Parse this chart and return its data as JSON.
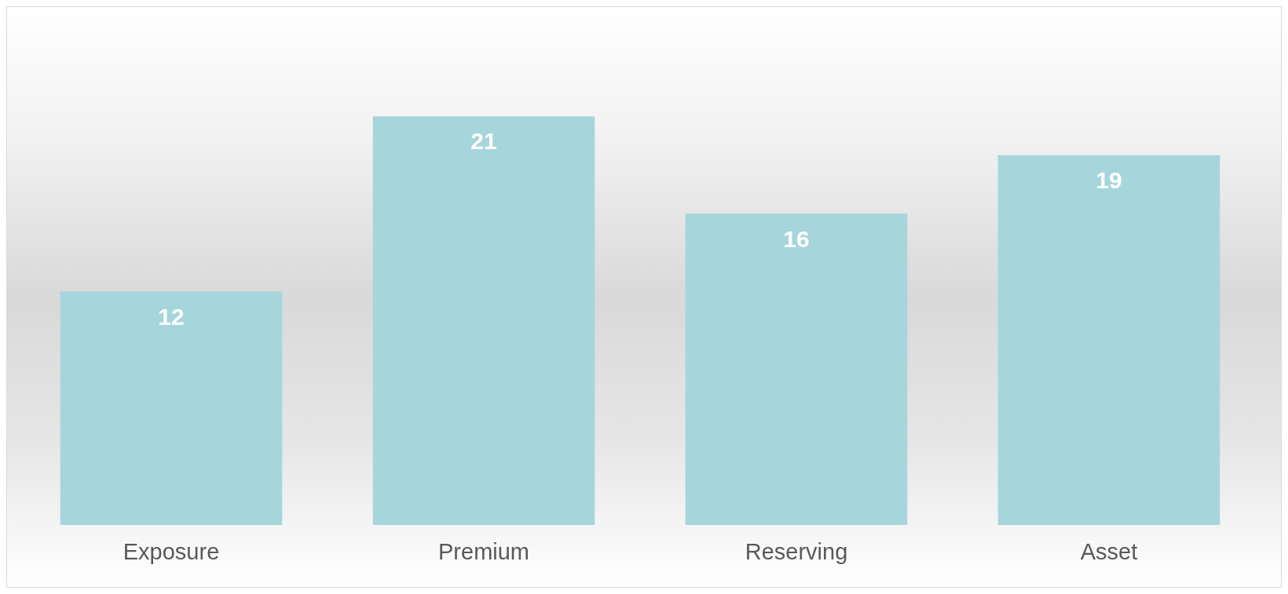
{
  "chart_data": {
    "type": "bar",
    "categories": [
      "Exposure",
      "Premium",
      "Reserving",
      "Asset"
    ],
    "values": [
      12,
      21,
      16,
      19
    ],
    "color": "#a6d6db",
    "data_labels": true,
    "grid": false,
    "legend": false
  }
}
